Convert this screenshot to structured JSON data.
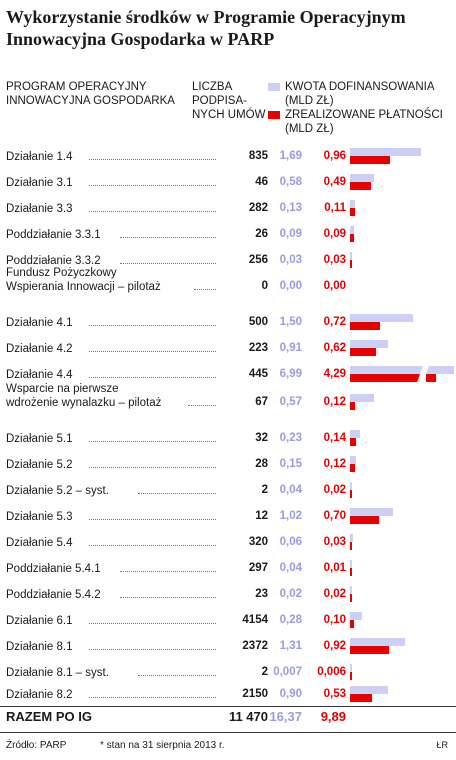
{
  "title": "Wykorzystanie środków w Programie Operacyjnym Innowacyjna Gospodarka w PARP",
  "headers": {
    "program": "PROGRAM OPERACYJNY INNOWACYJNA GOSPODARKA",
    "liczba": "LICZBA PODPISA-NYCH UMÓW"
  },
  "legend": {
    "kwota": "KWOTA DOFINANSOWANIA (MLD ZŁ)",
    "platnosci": "ZREALIZOWANE PŁATNOŚCI (MLD ZŁ)"
  },
  "colors": {
    "kwota": "#cdd0f4",
    "platnosci": "#e60000",
    "kwota_text": "#9a9ae6",
    "platnosci_text": "#e00000"
  },
  "chart_data": {
    "type": "bar",
    "series": [
      {
        "name": "KWOTA DOFINANSOWANIA (MLD ZŁ)",
        "key": "kwota"
      },
      {
        "name": "ZREALIZOWANE PŁATNOŚCI (MLD ZŁ)",
        "key": "platnosci"
      }
    ],
    "scale_max": 1.75,
    "rows": [
      {
        "label": "Działanie 1.4",
        "count": "835",
        "kwota": 1.69,
        "kwota_text": "1,69",
        "platnosci": 0.96,
        "platnosci_text": "0,96"
      },
      {
        "label": "Działanie 3.1",
        "count": "46",
        "kwota": 0.58,
        "kwota_text": "0,58",
        "platnosci": 0.49,
        "platnosci_text": "0,49"
      },
      {
        "label": "Działanie 3.3",
        "count": "282",
        "kwota": 0.13,
        "kwota_text": "0,13",
        "platnosci": 0.11,
        "platnosci_text": "0,11"
      },
      {
        "label": "Poddziałanie 3.3.1",
        "count": "26",
        "kwota": 0.09,
        "kwota_text": "0,09",
        "platnosci": 0.09,
        "platnosci_text": "0,09"
      },
      {
        "label": "Poddziałanie 3.3.2",
        "count": "256",
        "kwota": 0.03,
        "kwota_text": "0,03",
        "platnosci": 0.03,
        "platnosci_text": "0,03"
      },
      {
        "label": "Fundusz Pożyczkowy\nWspierania Innowacji – pilotaż",
        "count": "0",
        "kwota": 0.0,
        "kwota_text": "0,00",
        "platnosci": 0.0,
        "platnosci_text": "0,00"
      },
      {
        "label": "Działanie 4.1",
        "count": "500",
        "kwota": 1.5,
        "kwota_text": "1,50",
        "platnosci": 0.72,
        "platnosci_text": "0,72"
      },
      {
        "label": "Działanie 4.2",
        "count": "223",
        "kwota": 0.91,
        "kwota_text": "0,91",
        "platnosci": 0.62,
        "platnosci_text": "0,62"
      },
      {
        "label": "Działanie 4.4",
        "count": "445",
        "kwota": 6.99,
        "kwota_text": "6,99",
        "platnosci": 4.29,
        "platnosci_text": "4,29",
        "broken": true
      },
      {
        "label": "Wsparcie na pierwsze\nwdrożenie wynalazku – pilotaż",
        "count": "67",
        "kwota": 0.57,
        "kwota_text": "0,57",
        "platnosci": 0.12,
        "platnosci_text": "0,12"
      },
      {
        "label": "Działanie 5.1",
        "count": "32",
        "kwota": 0.23,
        "kwota_text": "0,23",
        "platnosci": 0.14,
        "platnosci_text": "0,14"
      },
      {
        "label": "Działanie 5.2",
        "count": "28",
        "kwota": 0.15,
        "kwota_text": "0,15",
        "platnosci": 0.12,
        "platnosci_text": "0,12"
      },
      {
        "label": "Działanie 5.2 – syst.",
        "count": "2",
        "kwota": 0.04,
        "kwota_text": "0,04",
        "platnosci": 0.02,
        "platnosci_text": "0,02"
      },
      {
        "label": "Działanie 5.3",
        "count": "12",
        "kwota": 1.02,
        "kwota_text": "1,02",
        "platnosci": 0.7,
        "platnosci_text": "0,70"
      },
      {
        "label": "Działanie 5.4",
        "count": "320",
        "kwota": 0.06,
        "kwota_text": "0,06",
        "platnosci": 0.03,
        "platnosci_text": "0,03"
      },
      {
        "label": "Poddziałanie 5.4.1",
        "count": "297",
        "kwota": 0.04,
        "kwota_text": "0,04",
        "platnosci": 0.01,
        "platnosci_text": "0,01"
      },
      {
        "label": "Poddziałanie 5.4.2",
        "count": "23",
        "kwota": 0.02,
        "kwota_text": "0,02",
        "platnosci": 0.02,
        "platnosci_text": "0,02"
      },
      {
        "label": "Działanie 6.1",
        "count": "4154",
        "kwota": 0.28,
        "kwota_text": "0,28",
        "platnosci": 0.1,
        "platnosci_text": "0,10"
      },
      {
        "label": "Działanie 8.1",
        "count": "2372",
        "kwota": 1.31,
        "kwota_text": "1,31",
        "platnosci": 0.92,
        "platnosci_text": "0,92"
      },
      {
        "label": "Działanie 8.1 – syst.",
        "count": "2",
        "kwota": 0.007,
        "kwota_text": "0,007",
        "platnosci": 0.006,
        "platnosci_text": "0,006"
      },
      {
        "label": "Działanie 8.2",
        "count": "2150",
        "kwota": 0.9,
        "kwota_text": "0,90",
        "platnosci": 0.53,
        "platnosci_text": "0,53"
      }
    ],
    "total": {
      "label": "RAZEM PO IG",
      "count": "11 470",
      "kwota_text": "16,37",
      "platnosci_text": "9,89"
    }
  },
  "footer": {
    "source": "Źródło: PARP",
    "note": "* stan na 31 sierpnia 2013 r.",
    "mark": "ŁR"
  }
}
